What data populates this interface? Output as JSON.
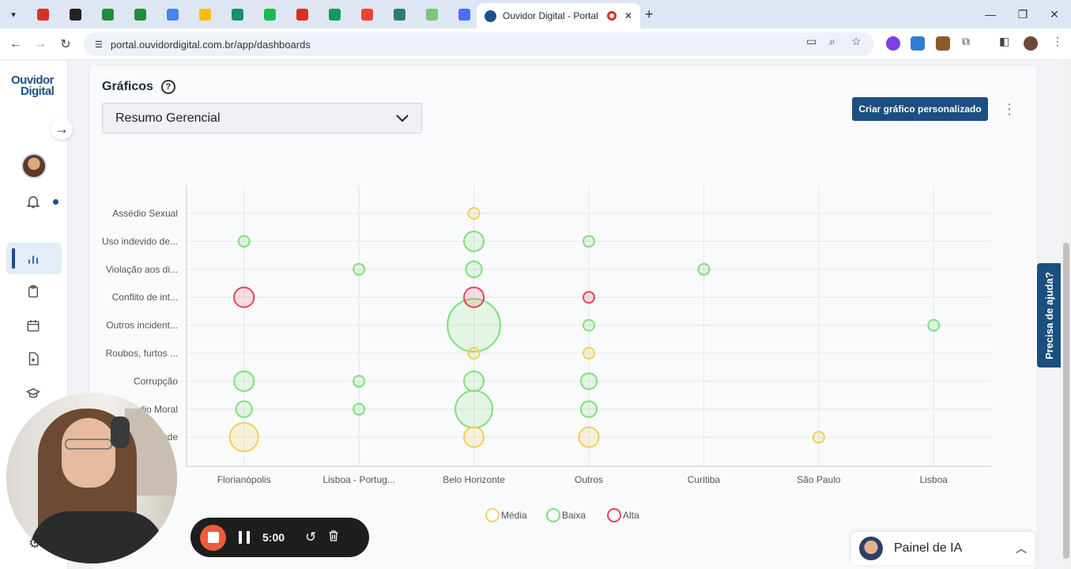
{
  "browser": {
    "tab_title": "Ouvidor Digital - Portal",
    "url": "portal.ouvidordigital.com.br/app/dashboards",
    "pinned_tab_colors": [
      "#d93025",
      "#222222",
      "#1e8e3e",
      "#1e8e3e",
      "#4285f4",
      "#fbbc04",
      "#1b8f6b",
      "#1db954",
      "#d93025",
      "#0f9d58",
      "#ea4335",
      "#2e7d6b",
      "#7cc47f",
      "#4c6ef5"
    ]
  },
  "app": {
    "logo_line1": "Ouvidor",
    "logo_line2": "Digital",
    "section_title": "Gráficos",
    "help_symbol": "?",
    "chart_selector_value": "Resumo Gerencial",
    "create_chart_label": "Criar gráfico personalizado",
    "help_tab_label": "Precisa de ajuda?",
    "ai_panel_label": "Painel de IA"
  },
  "recorder": {
    "time": "5:00"
  },
  "icons": {
    "sidebar": [
      "arrow-right-icon",
      "avatar",
      "bell-icon",
      "bar-chart-icon",
      "clipboard-icon",
      "calendar-icon",
      "file-plus-icon",
      "graduation-cap-icon",
      "settings-icon"
    ]
  },
  "chart_data": {
    "type": "scatter",
    "title": "",
    "x_categories": [
      "Florianópolis",
      "Lisboa - Portug...",
      "Belo Horizonte",
      "Outros",
      "Curitiba",
      "São Paulo",
      "Lisboa"
    ],
    "y_categories": [
      "Assédio Sexual",
      "Uso indevido de...",
      "Violação aos di...",
      "Conflito de int...",
      "Outros incident...",
      "Roubos, furtos ...",
      "Corrupção",
      "Assédio Moral",
      "Fraude"
    ],
    "y_tick_labels_visible": [
      "Assédio Sexual",
      "Uso indevido de...",
      "Violação aos di...",
      "Conflito de int...",
      "Outros incident...",
      "Roubos, furtos ...",
      "Corrupção",
      "ádio Moral",
      "ude"
    ],
    "legend": [
      {
        "name": "Média",
        "color": "#f2d36b"
      },
      {
        "name": "Baixa",
        "color": "#7ee07a"
      },
      {
        "name": "Alta",
        "color": "#e0455a"
      }
    ],
    "legend_position": "bottom",
    "grid": true,
    "series": [
      {
        "name": "Média",
        "points": [
          {
            "x": "Belo Horizonte",
            "y": "Assédio Sexual",
            "size": 1
          },
          {
            "x": "Belo Horizonte",
            "y": "Roubos, furtos ...",
            "size": 1
          },
          {
            "x": "Outros",
            "y": "Roubos, furtos ...",
            "size": 1
          },
          {
            "x": "Florianópolis",
            "y": "Fraude",
            "size": 6
          },
          {
            "x": "Belo Horizonte",
            "y": "Fraude",
            "size": 3
          },
          {
            "x": "Outros",
            "y": "Fraude",
            "size": 3
          },
          {
            "x": "São Paulo",
            "y": "Fraude",
            "size": 1
          }
        ]
      },
      {
        "name": "Baixa",
        "points": [
          {
            "x": "Florianópolis",
            "y": "Uso indevido de...",
            "size": 1
          },
          {
            "x": "Belo Horizonte",
            "y": "Uso indevido de...",
            "size": 3
          },
          {
            "x": "Outros",
            "y": "Uso indevido de...",
            "size": 1
          },
          {
            "x": "Lisboa - Portug...",
            "y": "Violação aos di...",
            "size": 1
          },
          {
            "x": "Belo Horizonte",
            "y": "Violação aos di...",
            "size": 2
          },
          {
            "x": "Curitiba",
            "y": "Violação aos di...",
            "size": 1
          },
          {
            "x": "Belo Horizonte",
            "y": "Outros incident...",
            "size": 20
          },
          {
            "x": "Outros",
            "y": "Outros incident...",
            "size": 1
          },
          {
            "x": "Lisboa",
            "y": "Outros incident...",
            "size": 1
          },
          {
            "x": "Florianópolis",
            "y": "Corrupção",
            "size": 3
          },
          {
            "x": "Lisboa - Portug...",
            "y": "Corrupção",
            "size": 1
          },
          {
            "x": "Belo Horizonte",
            "y": "Corrupção",
            "size": 3
          },
          {
            "x": "Outros",
            "y": "Corrupção",
            "size": 2
          },
          {
            "x": "Florianópolis",
            "y": "Assédio Moral",
            "size": 2
          },
          {
            "x": "Lisboa - Portug...",
            "y": "Assédio Moral",
            "size": 1
          },
          {
            "x": "Belo Horizonte",
            "y": "Assédio Moral",
            "size": 10
          },
          {
            "x": "Outros",
            "y": "Assédio Moral",
            "size": 2
          }
        ]
      },
      {
        "name": "Alta",
        "points": [
          {
            "x": "Florianópolis",
            "y": "Conflito de int...",
            "size": 3
          },
          {
            "x": "Belo Horizonte",
            "y": "Conflito de int...",
            "size": 3
          },
          {
            "x": "Outros",
            "y": "Conflito de int...",
            "size": 1
          }
        ]
      }
    ]
  }
}
